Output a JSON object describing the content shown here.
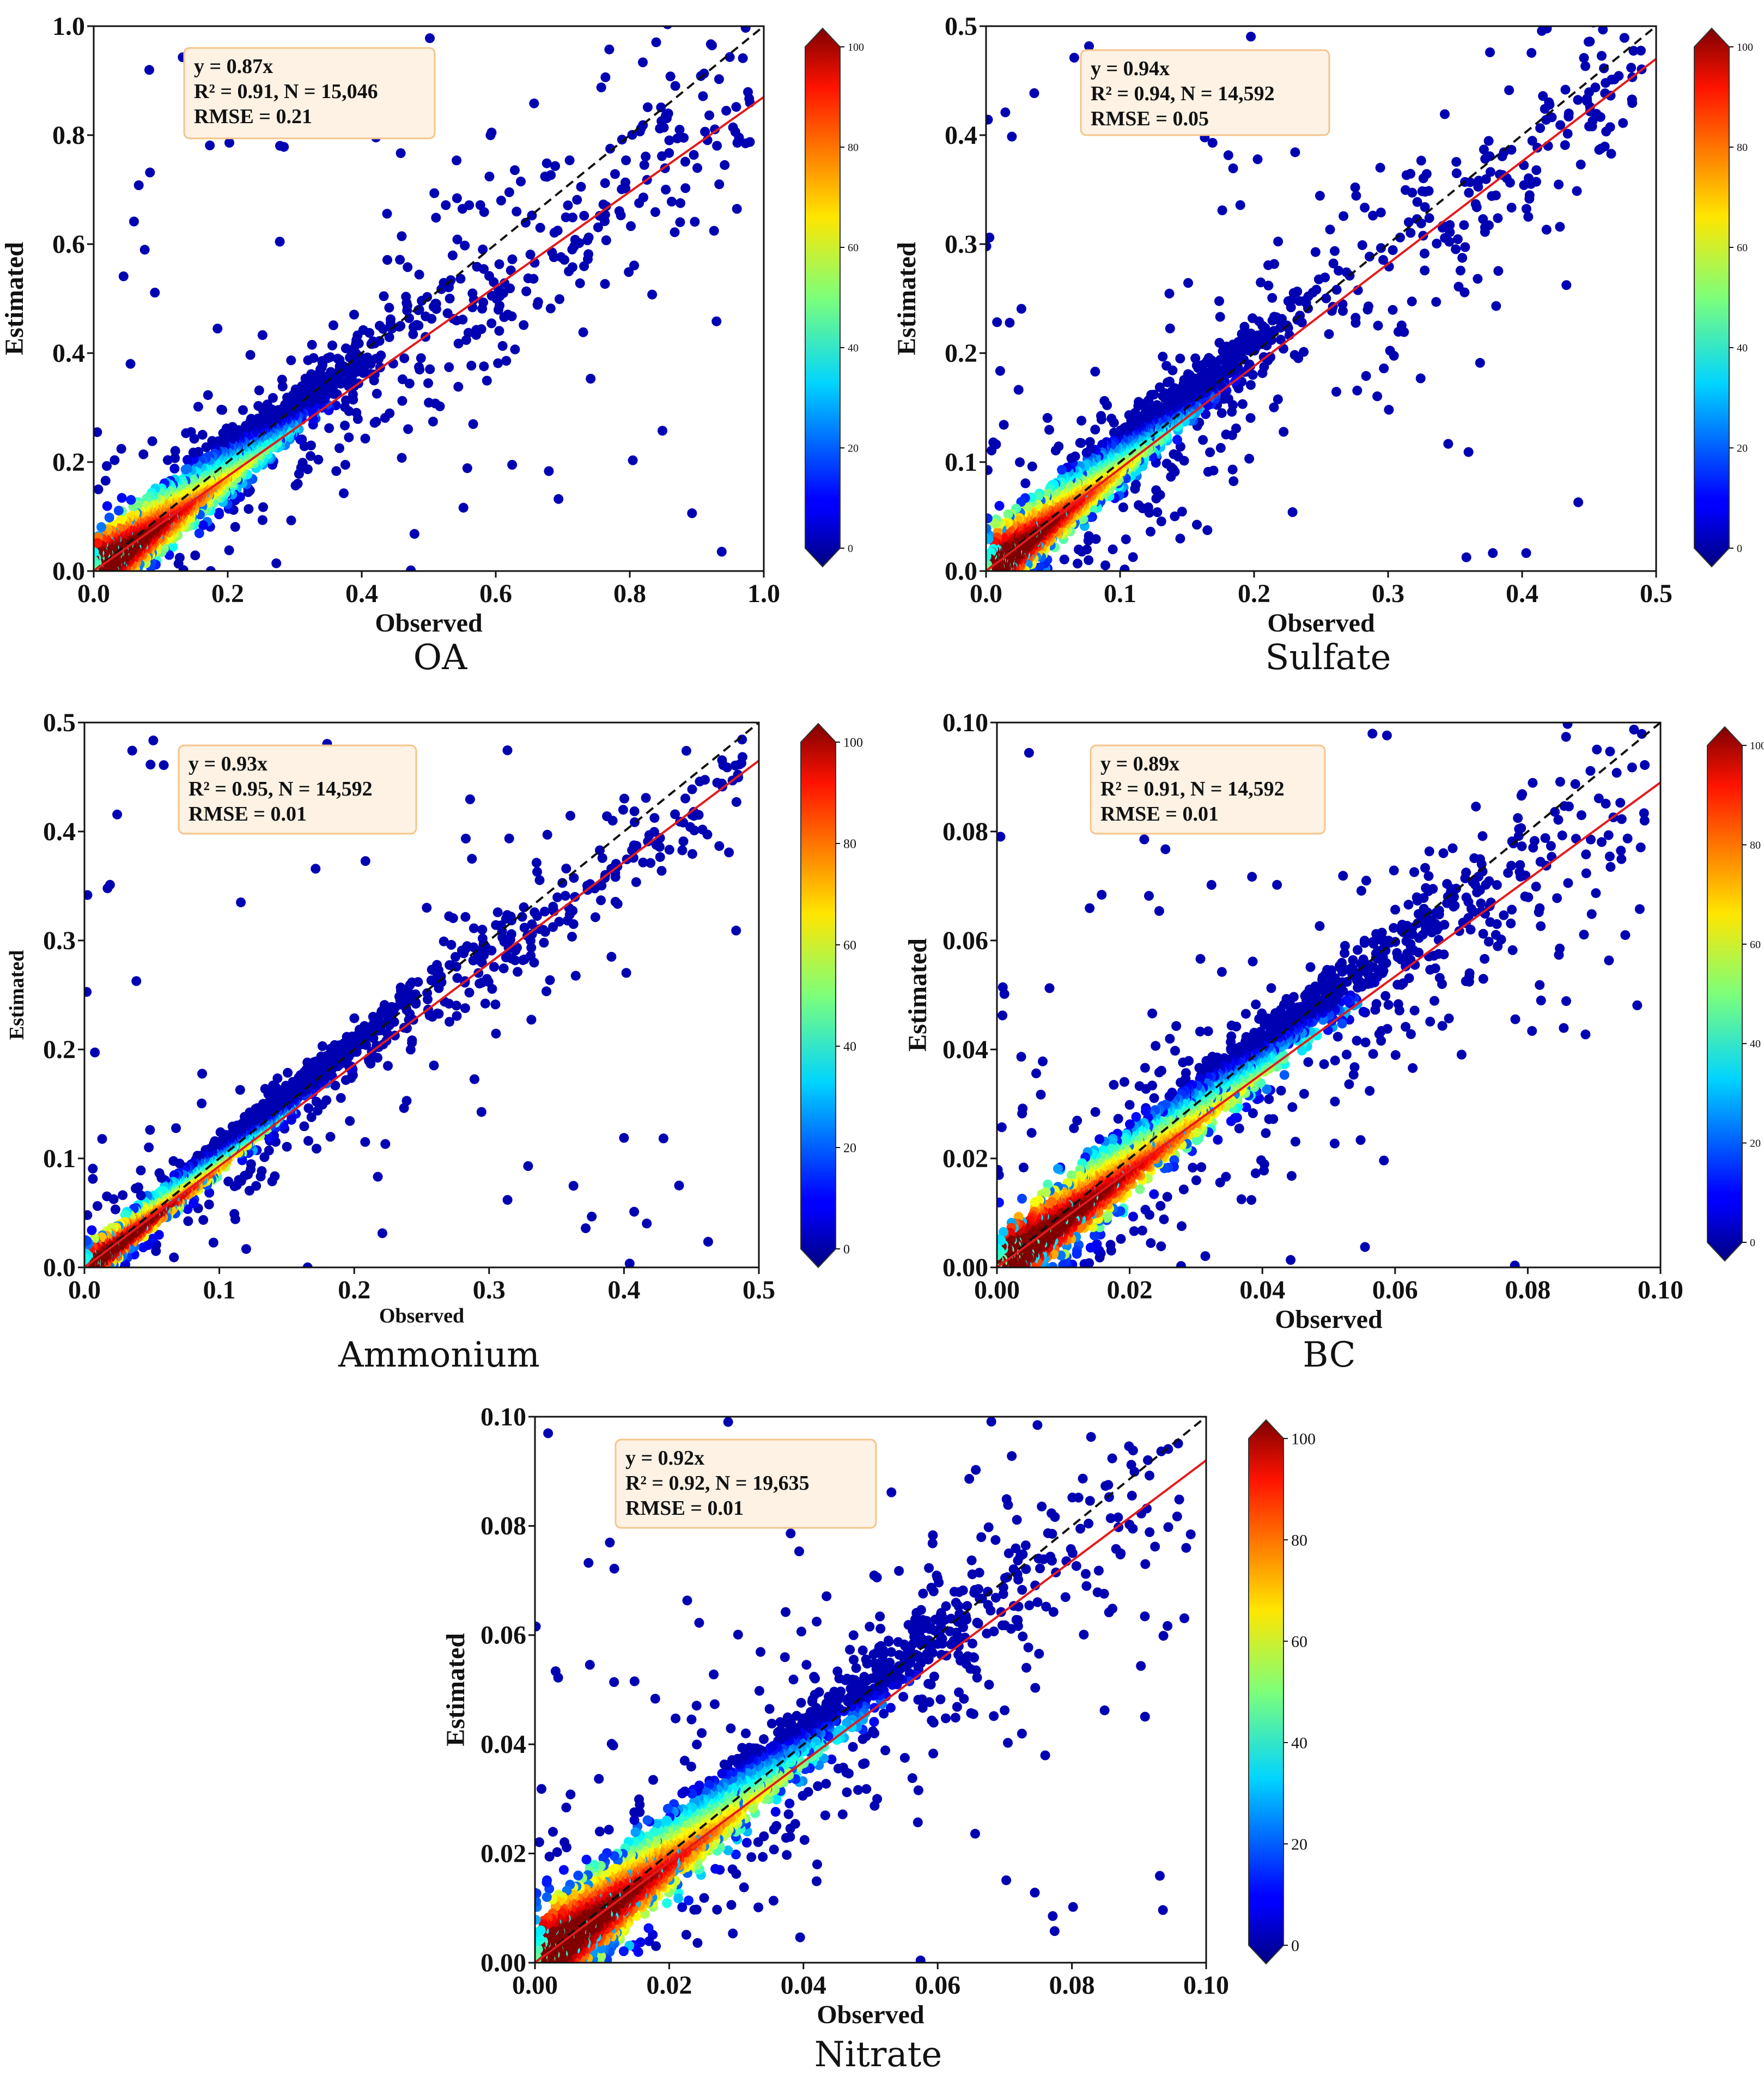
{
  "chart_data": [
    {
      "type": "scatter",
      "title": "OA",
      "xlabel": "Observed",
      "ylabel": "Estimated",
      "xlim": [
        0.0,
        1.0
      ],
      "ylim": [
        0.0,
        1.0
      ],
      "xticks": [
        "0.0",
        "0.2",
        "0.4",
        "0.6",
        "0.8",
        "1.0"
      ],
      "yticks": [
        "0.0",
        "0.2",
        "0.4",
        "0.6",
        "0.8",
        "1.0"
      ],
      "fit_slope": 0.87,
      "stats": [
        "y = 0.87x",
        "R² = 0.91, N = 15,046",
        "RMSE = 0.21"
      ],
      "colorbar": {
        "ticks": [
          "0",
          "20",
          "40",
          "60",
          "80",
          "100"
        ]
      },
      "density_core": 0.18,
      "spread": 0.045
    },
    {
      "type": "scatter",
      "title": "Sulfate",
      "xlabel": "Observed",
      "ylabel": "Estimated",
      "xlim": [
        0.0,
        0.5
      ],
      "ylim": [
        0.0,
        0.5
      ],
      "xticks": [
        "0.0",
        "0.1",
        "0.2",
        "0.3",
        "0.4",
        "0.5"
      ],
      "yticks": [
        "0.0",
        "0.1",
        "0.2",
        "0.3",
        "0.4",
        "0.5"
      ],
      "fit_slope": 0.94,
      "stats": [
        "y = 0.94x",
        "R² = 0.94, N = 14,592",
        "RMSE = 0.05"
      ],
      "colorbar": {
        "ticks": [
          "0",
          "20",
          "40",
          "60",
          "80",
          "100"
        ]
      },
      "density_core": 0.09,
      "spread": 0.022
    },
    {
      "type": "scatter",
      "title": "Ammonium",
      "xlabel": "Observed",
      "ylabel": "Estimated",
      "xlim": [
        0.0,
        0.5
      ],
      "ylim": [
        0.0,
        0.5
      ],
      "xticks": [
        "0.0",
        "0.1",
        "0.2",
        "0.3",
        "0.4",
        "0.5"
      ],
      "yticks": [
        "0.0",
        "0.1",
        "0.2",
        "0.3",
        "0.4",
        "0.5"
      ],
      "fit_slope": 0.93,
      "stats": [
        "y = 0.93x",
        "R² = 0.95, N = 14,592",
        "RMSE = 0.01"
      ],
      "colorbar": {
        "ticks": [
          "0",
          "20",
          "40",
          "60",
          "80",
          "100"
        ]
      },
      "density_core": 0.1,
      "spread": 0.012
    },
    {
      "type": "scatter",
      "title": "BC",
      "xlabel": "Observed",
      "ylabel": "Estimated",
      "xlim": [
        0.0,
        0.1
      ],
      "ylim": [
        0.0,
        0.1
      ],
      "xticks": [
        "0.00",
        "0.02",
        "0.04",
        "0.06",
        "0.08",
        "0.10"
      ],
      "yticks": [
        "0.00",
        "0.02",
        "0.04",
        "0.06",
        "0.08",
        "0.10"
      ],
      "fit_slope": 0.89,
      "stats": [
        "y = 0.89x",
        "R² = 0.91, N = 14,592",
        "RMSE = 0.01"
      ],
      "colorbar": {
        "ticks": [
          "0",
          "20",
          "40",
          "60",
          "80",
          "100"
        ]
      },
      "density_core": 0.03,
      "spread": 0.005
    },
    {
      "type": "scatter",
      "title": "Nitrate",
      "xlabel": "Observed",
      "ylabel": "Estimated",
      "xlim": [
        0.0,
        0.1
      ],
      "ylim": [
        0.0,
        0.1
      ],
      "xticks": [
        "0.00",
        "0.02",
        "0.04",
        "0.06",
        "0.08",
        "0.10"
      ],
      "yticks": [
        "0.00",
        "0.02",
        "0.04",
        "0.06",
        "0.08",
        "0.10"
      ],
      "fit_slope": 0.92,
      "stats": [
        "y = 0.92x",
        "R² = 0.92, N = 19,635",
        "RMSE = 0.01"
      ],
      "colorbar": {
        "ticks": [
          "0",
          "20",
          "40",
          "60",
          "80",
          "100"
        ]
      },
      "density_core": 0.028,
      "spread": 0.006
    }
  ],
  "colors": {
    "fit_line": "#e41a1c",
    "one_to_one": "#111111",
    "stats_box_fill": "#fdf2e4",
    "stats_box_border": "#f5c48a"
  }
}
